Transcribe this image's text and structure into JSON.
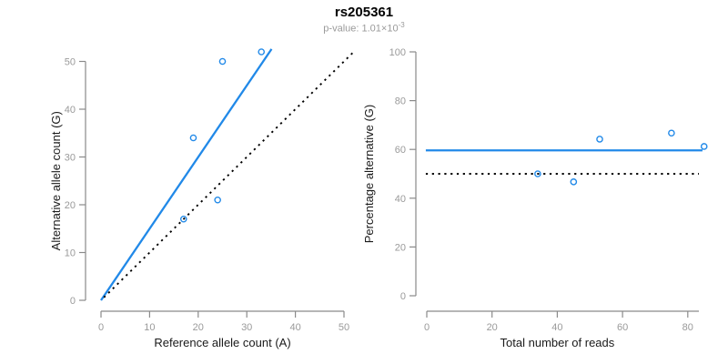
{
  "header": {
    "title": "rs205361",
    "p_value_label": "p-value: 1.01×10",
    "p_value_exponent": "-3"
  },
  "colors": {
    "accent_blue": "#2189E8",
    "axis_gray": "#8a8a8a",
    "tick_label_gray": "#9a9a9a",
    "axis_title_black": "#1a1a1a",
    "dotted_line_black": "#000000"
  },
  "chart_data": [
    {
      "type": "scatter",
      "name": "allele-counts-plot",
      "xlabel": "Reference allele count (A)",
      "ylabel": "Alternative allele count (G)",
      "xlim": [
        0,
        50
      ],
      "ylim": [
        0,
        50
      ],
      "xticks": [
        0,
        10,
        20,
        30,
        40,
        50
      ],
      "yticks": [
        0,
        10,
        20,
        30,
        40,
        50
      ],
      "grid": false,
      "points": [
        [
          17,
          17
        ],
        [
          24,
          21
        ],
        [
          19,
          34
        ],
        [
          25,
          50
        ],
        [
          33,
          52
        ]
      ],
      "lines": [
        {
          "name": "regression-line",
          "style": "solid",
          "color": "accent",
          "x1": 0,
          "y1": 0,
          "x2": 35.1,
          "y2": 52.6
        },
        {
          "name": "identity-line",
          "style": "dotted",
          "color": "black",
          "x1": 0.6,
          "y1": 0.6,
          "x2": 52.2,
          "y2": 52.2
        }
      ]
    },
    {
      "type": "scatter",
      "name": "percentage-vs-reads-plot",
      "xlabel": "Total number of reads",
      "ylabel": "Percentage alternative (G)",
      "xlim": [
        0,
        85
      ],
      "ylim": [
        0,
        100
      ],
      "xticks": [
        0,
        20,
        40,
        60,
        80
      ],
      "yticks": [
        0,
        20,
        40,
        60,
        80,
        100
      ],
      "grid": false,
      "points": [
        [
          34,
          50
        ],
        [
          45,
          46.7
        ],
        [
          53,
          64.2
        ],
        [
          75,
          66.7
        ],
        [
          85,
          61.2
        ]
      ],
      "lines": [
        {
          "name": "mean-percentage-line",
          "style": "solid",
          "color": "accent",
          "x1": -0.3,
          "y1": 59.6,
          "x2": 84.5,
          "y2": 59.6
        },
        {
          "name": "expected-50-percent-line",
          "style": "dotted",
          "color": "black",
          "x1": -0.3,
          "y1": 50,
          "x2": 83.4,
          "y2": 50
        }
      ]
    }
  ]
}
